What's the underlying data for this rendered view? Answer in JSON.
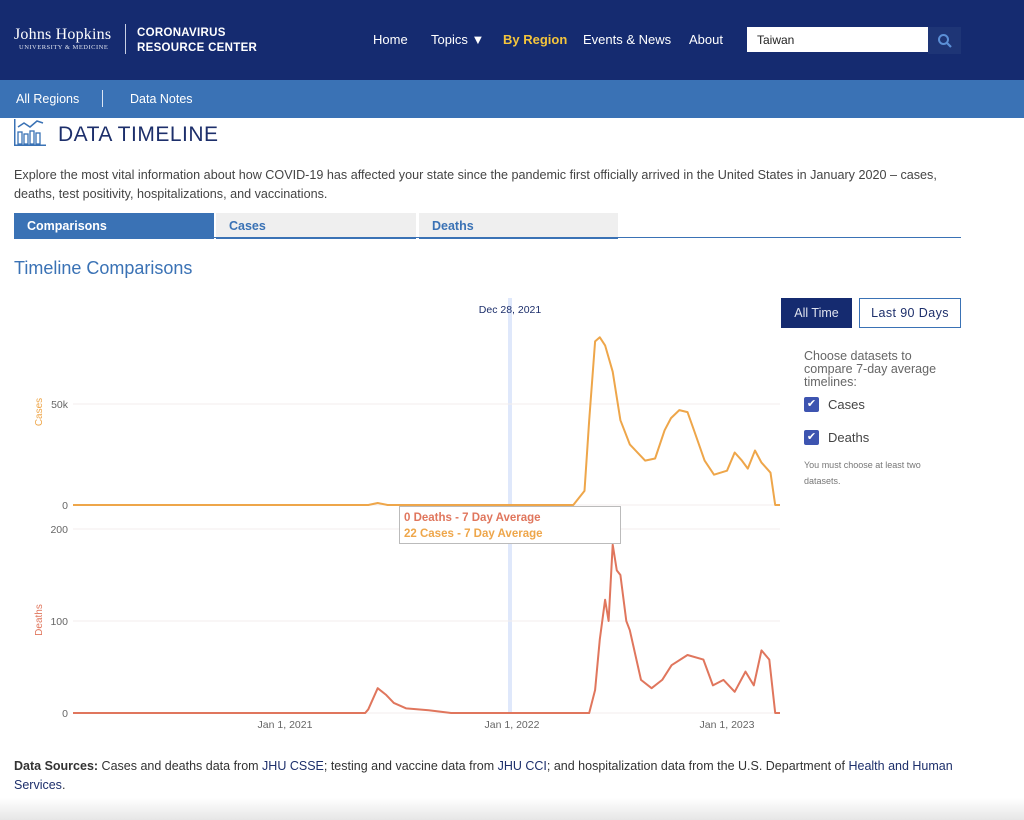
{
  "header": {
    "logo_line1": "Johns Hopkins",
    "logo_line2": "UNIVERSITY & MEDICINE",
    "site_title_1": "CORONAVIRUS",
    "site_title_2": "RESOURCE CENTER",
    "nav": [
      "Home",
      "Topics ▼",
      "By Region",
      "Events & News",
      "About"
    ],
    "search_value": "Taiwan"
  },
  "subnav": [
    "All Regions",
    "Data Notes"
  ],
  "page": {
    "title": "DATA TIMELINE",
    "description": "Explore the most vital information about how COVID-19 has affected your state since the pandemic first officially arrived in the United States in January 2020 – cases, deaths, test positivity, hospitalizations, and vaccinations.",
    "tabs": [
      "Comparisons",
      "Cases",
      "Deaths"
    ],
    "section_title": "Timeline Comparisons"
  },
  "controls": {
    "all_time": "All Time",
    "last_90": "Last 90 Days",
    "choose_text": "Choose datasets to compare 7-day average timelines:",
    "options": [
      {
        "label": "Cases",
        "checked": true
      },
      {
        "label": "Deaths",
        "checked": true
      }
    ],
    "hint": "You must choose at least two datasets."
  },
  "tooltip": {
    "date": "Dec 28, 2021",
    "deaths": "0 Deaths - 7 Day Average",
    "cases": "22 Cases - 7 Day Average"
  },
  "sources": {
    "label": "Data Sources:",
    "t1": " Cases and deaths data from ",
    "l1": "JHU CSSE",
    "t2": "; testing and vaccine data from ",
    "l2": "JHU CCI",
    "t3": "; and hospitalization data from the U.S. Department of ",
    "l3": "Health and Human Services",
    "t4": "."
  },
  "colors": {
    "cases": "#eea64a",
    "deaths": "#e0765d",
    "navy": "#152b70",
    "blue": "#3a72b5"
  },
  "chart_data": [
    {
      "type": "line",
      "title": "Cases",
      "ylabel": "Cases",
      "ylim": [
        0,
        85000
      ],
      "yticks": [
        {
          "v": 0,
          "label": "0"
        },
        {
          "v": 50000,
          "label": "50k"
        }
      ],
      "xticks": [
        "Jan 1, 2021",
        "Jan 1, 2022",
        "Jan 1, 2023"
      ],
      "points": [
        [
          "2020-01-22",
          0
        ],
        [
          "2021-05-15",
          0
        ],
        [
          "2021-05-30",
          1000
        ],
        [
          "2021-06-15",
          0
        ],
        [
          "2022-04-15",
          0
        ],
        [
          "2022-05-04",
          7000
        ],
        [
          "2022-05-12",
          42000
        ],
        [
          "2022-05-22",
          81000
        ],
        [
          "2022-05-30",
          83000
        ],
        [
          "2022-06-08",
          79000
        ],
        [
          "2022-06-21",
          66000
        ],
        [
          "2022-07-04",
          42000
        ],
        [
          "2022-07-20",
          30000
        ],
        [
          "2022-08-15",
          22000
        ],
        [
          "2022-09-01",
          23000
        ],
        [
          "2022-09-17",
          37000
        ],
        [
          "2022-09-28",
          43000
        ],
        [
          "2022-10-12",
          47000
        ],
        [
          "2022-10-26",
          46000
        ],
        [
          "2022-11-06",
          37000
        ],
        [
          "2022-11-24",
          22000
        ],
        [
          "2022-12-10",
          15000
        ],
        [
          "2023-01-01",
          17000
        ],
        [
          "2023-01-14",
          26000
        ],
        [
          "2023-01-26",
          22000
        ],
        [
          "2023-02-05",
          18000
        ],
        [
          "2023-02-17",
          27000
        ],
        [
          "2023-02-28",
          21000
        ],
        [
          "2023-03-15",
          16000
        ],
        [
          "2023-03-23",
          0
        ],
        [
          "2023-03-31",
          0
        ]
      ]
    },
    {
      "type": "line",
      "title": "Deaths",
      "ylabel": "Deaths",
      "ylim": [
        0,
        200
      ],
      "yticks": [
        {
          "v": 0,
          "label": "0"
        },
        {
          "v": 100,
          "label": "100"
        },
        {
          "v": 200,
          "label": "200"
        }
      ],
      "xticks": [
        "Jan 1, 2021",
        "Jan 1, 2022",
        "Jan 1, 2023"
      ],
      "points": [
        [
          "2020-01-22",
          0
        ],
        [
          "2021-05-10",
          0
        ],
        [
          "2021-05-15",
          4
        ],
        [
          "2021-05-30",
          27
        ],
        [
          "2021-06-12",
          20
        ],
        [
          "2021-06-25",
          11
        ],
        [
          "2021-07-15",
          5
        ],
        [
          "2021-08-20",
          3
        ],
        [
          "2021-09-25",
          0
        ],
        [
          "2022-05-12",
          0
        ],
        [
          "2022-05-22",
          25
        ],
        [
          "2022-05-30",
          80
        ],
        [
          "2022-06-08",
          123
        ],
        [
          "2022-06-14",
          100
        ],
        [
          "2022-06-21",
          183
        ],
        [
          "2022-06-28",
          155
        ],
        [
          "2022-07-04",
          150
        ],
        [
          "2022-07-14",
          100
        ],
        [
          "2022-07-20",
          90
        ],
        [
          "2022-08-08",
          36
        ],
        [
          "2022-08-26",
          27
        ],
        [
          "2022-09-13",
          36
        ],
        [
          "2022-09-29",
          52
        ],
        [
          "2022-10-26",
          63
        ],
        [
          "2022-11-22",
          58
        ],
        [
          "2022-12-08",
          30
        ],
        [
          "2022-12-26",
          36
        ],
        [
          "2023-01-14",
          23
        ],
        [
          "2023-02-01",
          45
        ],
        [
          "2023-02-15",
          30
        ],
        [
          "2023-02-28",
          68
        ],
        [
          "2023-03-13",
          58
        ],
        [
          "2023-03-23",
          0
        ],
        [
          "2023-03-31",
          0
        ]
      ]
    }
  ]
}
